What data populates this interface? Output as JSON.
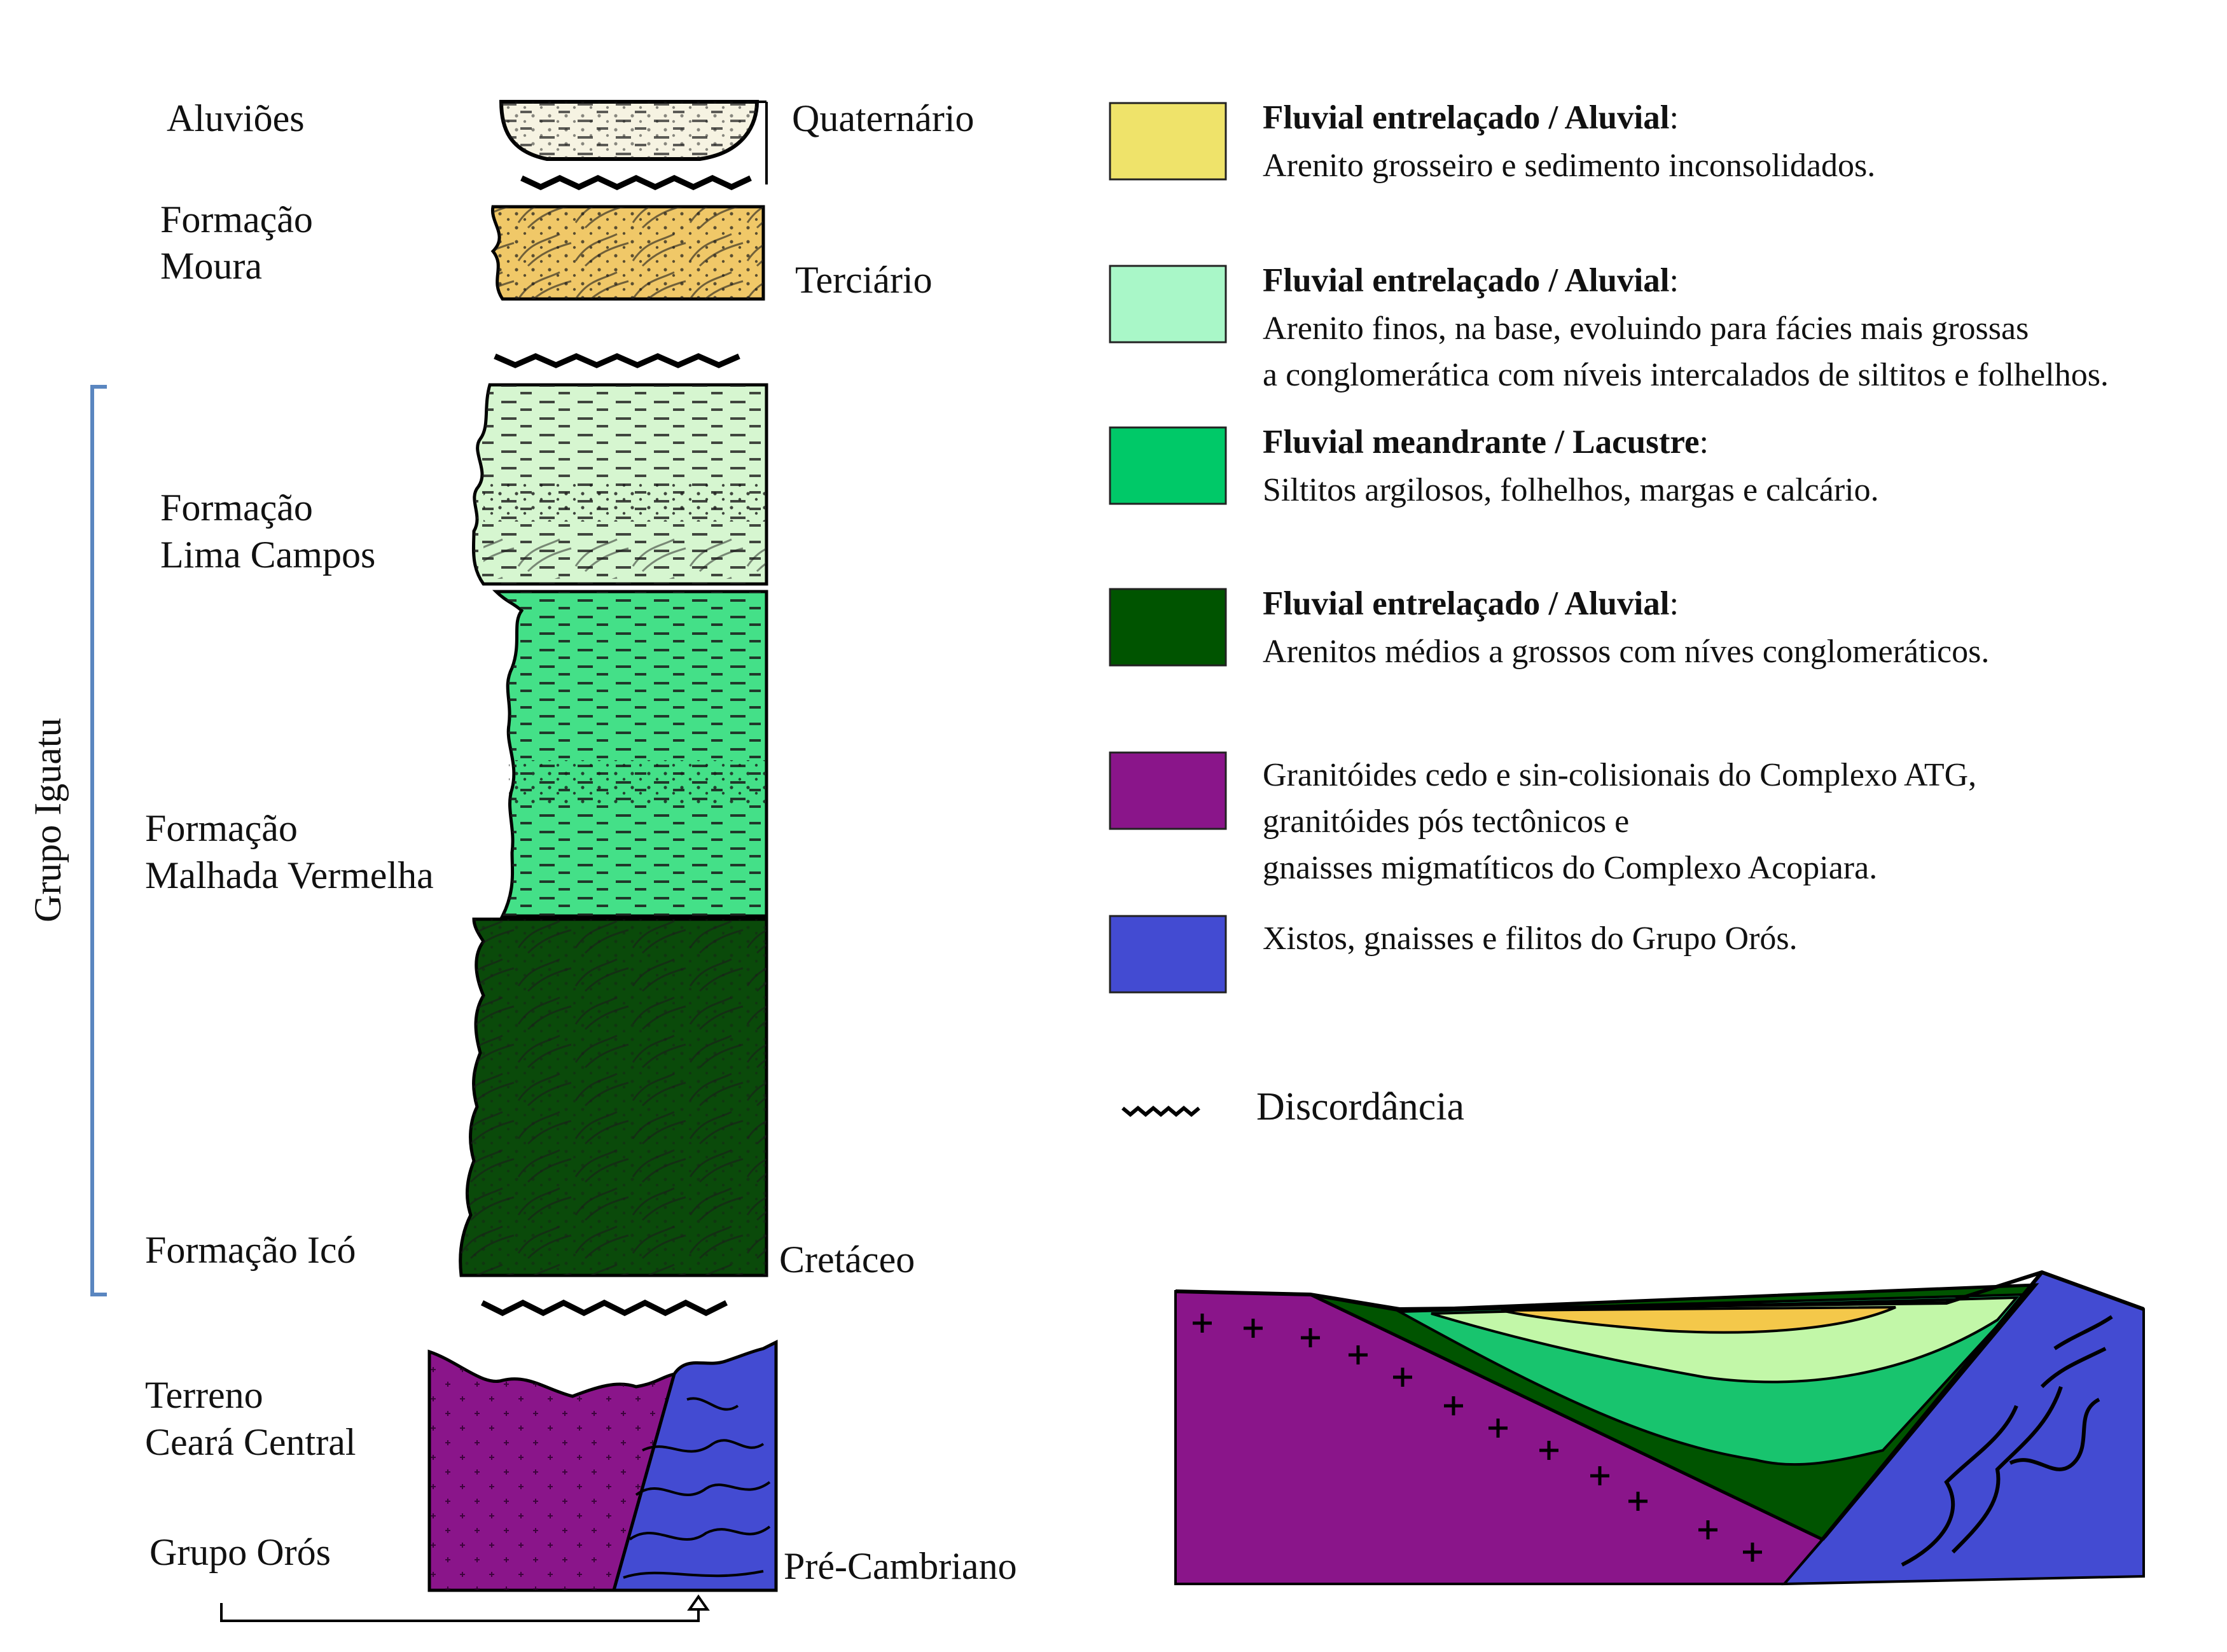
{
  "formation_labels": {
    "aluvioes": "Aluviões",
    "moura_1": "Formação",
    "moura_2": "Moura",
    "lima_1": "Formação",
    "lima_2": "Lima Campos",
    "malhada_1": "Formação",
    "malhada_2": "Malhada Vermelha",
    "ico": "Formação Icó",
    "terreno_1": "Terreno",
    "terreno_2": "Ceará Central",
    "oros": "Grupo Orós"
  },
  "group_label": "Grupo Iguatu",
  "age_labels": {
    "quaternario": "Quaternário",
    "terciario": "Terciário",
    "cretaceo": "Cretáceo",
    "precambriano": "Pré-Cambriano"
  },
  "legend": {
    "items": [
      {
        "color": "#EFE36A",
        "title": "Fluvial entrelaçado / Aluvial",
        "suffix": ":",
        "lines": [
          "Arenito grosseiro e sedimento inconsolidados."
        ]
      },
      {
        "color": "#A9F7C8",
        "title": "Fluvial entrelaçado / Aluvial",
        "suffix": ":",
        "lines": [
          "Arenito finos, na base, evoluindo para fácies mais grossas",
          "a conglomerática com níveis intercalados de siltitos e folhelhos."
        ]
      },
      {
        "color": "#00C968",
        "title": "Fluvial meandrante / Lacustre",
        "suffix": ":",
        "lines": [
          "Siltitos argilosos, folhelhos, margas e calcário."
        ]
      },
      {
        "color": "#005400",
        "title": "Fluvial entrelaçado / Aluvial",
        "suffix": ":",
        "lines": [
          "Arenitos médios a grossos com níves conglomeráticos."
        ]
      },
      {
        "color": "#8A158A",
        "title": "",
        "suffix": "",
        "lines": [
          "Granitóides cedo e sin-colisionais do Complexo ATG,",
          "granitóides pós tectônicos e",
          "gnaisses migmatíticos do Complexo Acopiara."
        ]
      },
      {
        "color": "#434BD2",
        "title": "",
        "suffix": "",
        "lines": [
          "Xistos, gnaisses e filitos do Grupo Orós."
        ]
      }
    ],
    "discordancia": "Discordância"
  },
  "colors": {
    "aluvioes": "#F6F3E2",
    "moura": "#F0C868",
    "lima_campos": "#D6F6D0",
    "malhada": "#44E088",
    "ico": "#0A4A0A",
    "terreno": "#8A158A",
    "oros": "#434BD2",
    "bracket": "#5A86C0"
  }
}
